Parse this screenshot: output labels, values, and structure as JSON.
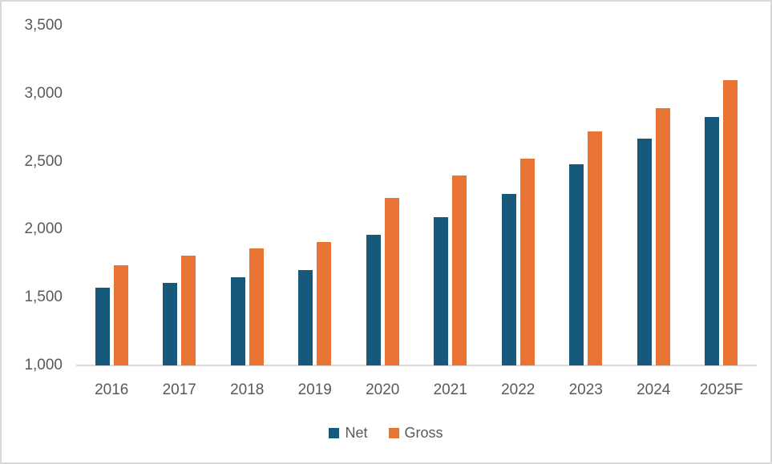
{
  "chart_data": {
    "type": "bar",
    "title": "",
    "xlabel": "",
    "ylabel": "",
    "categories": [
      "2016",
      "2017",
      "2018",
      "2019",
      "2020",
      "2021",
      "2022",
      "2023",
      "2024",
      "2025F"
    ],
    "series": [
      {
        "name": "Net",
        "color": "#17597a",
        "values": [
          1570,
          1610,
          1650,
          1700,
          1960,
          2090,
          2260,
          2480,
          2670,
          2830
        ]
      },
      {
        "name": "Gross",
        "color": "#e87333",
        "values": [
          1740,
          1810,
          1860,
          1910,
          2230,
          2400,
          2520,
          2720,
          2890,
          3100
        ]
      }
    ],
    "ylim": [
      1000,
      3500
    ],
    "yticks": [
      1000,
      1500,
      2000,
      2500,
      3000,
      3500
    ],
    "ytick_labels": [
      "1,000",
      "1,500",
      "2,000",
      "2,500",
      "3,000",
      "3,500"
    ],
    "grid": false,
    "legend_position": "bottom"
  },
  "colors": {
    "background": "#ffffff",
    "frame_border": "#d8d8d8",
    "axis_line": "#d9d9d9",
    "label_text": "#595959"
  }
}
